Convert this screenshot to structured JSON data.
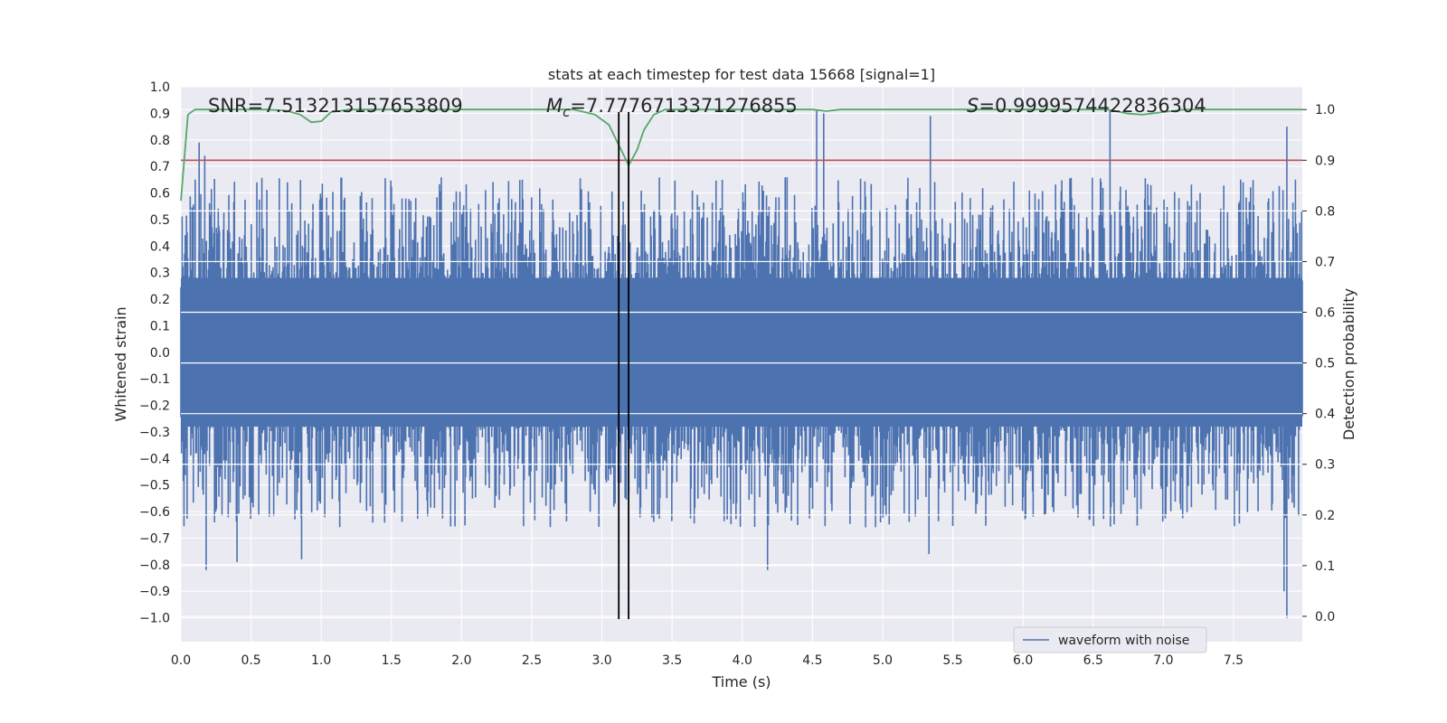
{
  "chart_data": {
    "type": "line",
    "title": "stats at each timestep for test data 15668 [signal=1]",
    "xlabel": "Time (s)",
    "ylabel": "Whitened strain",
    "y2label": "Detection probability",
    "xlim": [
      0.0,
      7.99
    ],
    "ylim": [
      -1.09,
      1.0
    ],
    "y2lim": [
      -0.05,
      1.045
    ],
    "xticks": [
      "0.0",
      "0.5",
      "1.0",
      "1.5",
      "2.0",
      "2.5",
      "3.0",
      "3.5",
      "4.0",
      "4.5",
      "5.0",
      "5.5",
      "6.0",
      "6.5",
      "7.0",
      "7.5"
    ],
    "yticks": [
      "1.0",
      "0.9",
      "0.8",
      "0.7",
      "0.6",
      "0.5",
      "0.4",
      "0.3",
      "0.2",
      "0.1",
      "0.0",
      "−0.1",
      "−0.2",
      "−0.3",
      "−0.4",
      "−0.5",
      "−0.6",
      "−0.7",
      "−0.8",
      "−0.9",
      "−1.0"
    ],
    "y2ticks": [
      "1.0",
      "0.9",
      "0.8",
      "0.7",
      "0.6",
      "0.5",
      "0.4",
      "0.3",
      "0.2",
      "0.1",
      "0.0"
    ],
    "grid": true,
    "legend_position": "lower-right",
    "annotations": {
      "snr": "SNR=7.513213157653809",
      "chirp_mass_symbol": "M",
      "chirp_mass_subscript": "c",
      "chirp_mass_value": "=7.7776713371276855",
      "detection_symbol": "S",
      "detection_value": "=0.9999574422836304"
    },
    "vertical_markers_x": [
      3.12,
      3.19
    ],
    "threshold_y2": 0.9,
    "series": [
      {
        "name": "waveform with noise",
        "color": "#4c72b0",
        "description_points": {
          "x_range": [
            0.0,
            7.99
          ],
          "core_amplitude": 0.3,
          "peak_values_top": [
            [
              0.13,
              0.79
            ],
            [
              0.17,
              0.74
            ],
            [
              4.53,
              0.91
            ],
            [
              4.58,
              0.9
            ],
            [
              5.34,
              0.89
            ],
            [
              6.62,
              0.91
            ],
            [
              7.88,
              0.85
            ]
          ],
          "peak_values_bottom": [
            [
              0.18,
              -0.82
            ],
            [
              0.4,
              -0.79
            ],
            [
              0.86,
              -0.78
            ],
            [
              4.18,
              -0.82
            ],
            [
              5.33,
              -0.76
            ],
            [
              7.88,
              -1.0
            ],
            [
              7.86,
              -0.9
            ]
          ]
        }
      },
      {
        "name": "detection probability",
        "color": "#55a868",
        "axis": "y2",
        "x": [
          0.0,
          0.05,
          0.1,
          0.15,
          0.6,
          0.75,
          0.85,
          0.93,
          1.0,
          1.07,
          1.2,
          2.8,
          2.95,
          3.05,
          3.12,
          3.19,
          3.25,
          3.3,
          3.37,
          3.45,
          4.5,
          4.6,
          4.7,
          6.6,
          6.75,
          6.85,
          7.0,
          7.15,
          7.99
        ],
        "y": [
          0.82,
          0.99,
          1.0,
          1.0,
          1.0,
          0.998,
          0.99,
          0.975,
          0.977,
          0.995,
          1.0,
          1.0,
          0.99,
          0.97,
          0.93,
          0.89,
          0.92,
          0.96,
          0.99,
          1.0,
          1.0,
          0.997,
          1.0,
          1.0,
          0.992,
          0.99,
          0.995,
          1.0,
          1.0
        ]
      }
    ],
    "colors": {
      "threshold": "#c44e52",
      "marker": "#000000",
      "background": "#eaeaf2",
      "grid": "#ffffff"
    }
  }
}
